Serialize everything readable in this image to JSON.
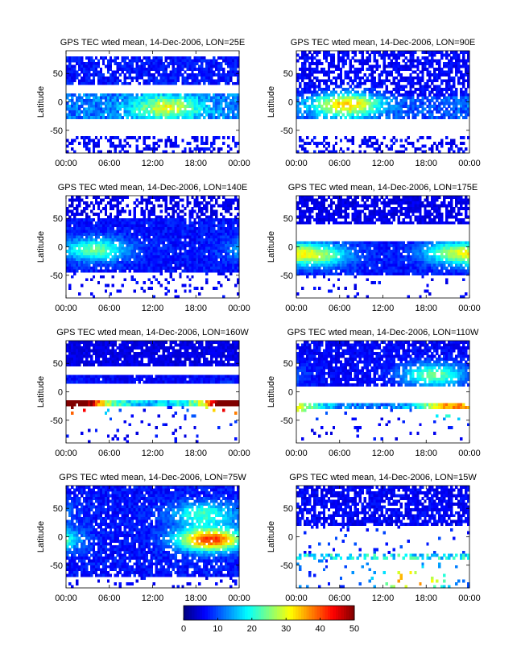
{
  "figure": {
    "colorbar": {
      "min": 0,
      "max": 50,
      "ticks": [
        0,
        10,
        20,
        30,
        40,
        50
      ],
      "colormap": "jet"
    }
  },
  "chart_data": [
    {
      "type": "heatmap",
      "title": "GPS TEC wted mean, 14-Dec-2006, LON=25E",
      "ylabel": "Latitude",
      "xticklabels": [
        "00:00",
        "06:00",
        "12:00",
        "18:00",
        "00:00"
      ],
      "yticklabels": [
        "50",
        "0",
        "-50"
      ],
      "xlim": [
        0,
        24
      ],
      "ylim": [
        -90,
        90
      ],
      "clim": [
        0,
        50
      ],
      "bands": [
        {
          "lat": [
            30,
            80
          ],
          "tec": 7,
          "coverage": 0.82
        },
        {
          "lat": [
            -30,
            15
          ],
          "tec": 12,
          "coverage": 0.9
        },
        {
          "lat": [
            -90,
            -60
          ],
          "tec": 6,
          "coverage": 0.35
        }
      ],
      "peaks": [
        {
          "hour": 14,
          "lat": -10,
          "tec": 30
        }
      ]
    },
    {
      "type": "heatmap",
      "title": "GPS TEC wted mean, 14-Dec-2006, LON=90E",
      "ylabel": "Latitude",
      "xticklabels": [
        "00:00",
        "06:00",
        "12:00",
        "18:00",
        "00:00"
      ],
      "yticklabels": [
        "50",
        "0",
        "-50"
      ],
      "xlim": [
        0,
        24
      ],
      "ylim": [
        -90,
        90
      ],
      "clim": [
        0,
        50
      ],
      "bands": [
        {
          "lat": [
            10,
            90
          ],
          "tec": 6,
          "coverage": 0.65
        },
        {
          "lat": [
            -30,
            10
          ],
          "tec": 10,
          "coverage": 0.75
        },
        {
          "lat": [
            -90,
            -60
          ],
          "tec": 6,
          "coverage": 0.35
        }
      ],
      "peaks": [
        {
          "hour": 7,
          "lat": -5,
          "tec": 34
        }
      ]
    },
    {
      "type": "heatmap",
      "title": "GPS TEC wted mean, 14-Dec-2006, LON=140E",
      "ylabel": "Latitude",
      "xticklabels": [
        "00:00",
        "06:00",
        "12:00",
        "18:00",
        "00:00"
      ],
      "yticklabels": [
        "50",
        "0",
        "-50"
      ],
      "xlim": [
        0,
        24
      ],
      "ylim": [
        -90,
        90
      ],
      "clim": [
        0,
        50
      ],
      "bands": [
        {
          "lat": [
            -45,
            50
          ],
          "tec": 7,
          "coverage": 0.95
        },
        {
          "lat": [
            50,
            90
          ],
          "tec": 5,
          "coverage": 0.5
        },
        {
          "lat": [
            -90,
            -45
          ],
          "tec": 6,
          "coverage": 0.15
        }
      ],
      "peaks": [
        {
          "hour": 4,
          "lat": -5,
          "tec": 24
        }
      ]
    },
    {
      "type": "heatmap",
      "title": "GPS TEC wted mean, 14-Dec-2006, LON=175E",
      "ylabel": "Latitude",
      "xticklabels": [
        "00:00",
        "06:00",
        "12:00",
        "18:00",
        "00:00"
      ],
      "yticklabels": [
        "50",
        "0",
        "-50"
      ],
      "xlim": [
        0,
        24
      ],
      "ylim": [
        -90,
        90
      ],
      "clim": [
        0,
        50
      ],
      "bands": [
        {
          "lat": [
            40,
            90
          ],
          "tec": 5,
          "coverage": 0.7
        },
        {
          "lat": [
            -50,
            10
          ],
          "tec": 7,
          "coverage": 0.95
        },
        {
          "lat": [
            -90,
            -50
          ],
          "tec": 6,
          "coverage": 0.1
        }
      ],
      "peaks": [
        {
          "hour": 3,
          "lat": -15,
          "tec": 24
        },
        {
          "hour": 22,
          "lat": -10,
          "tec": 24
        }
      ]
    },
    {
      "type": "heatmap",
      "title": "GPS TEC wted mean, 14-Dec-2006, LON=160W",
      "ylabel": "Latitude",
      "xticklabels": [
        "00:00",
        "06:00",
        "12:00",
        "18:00",
        "00:00"
      ],
      "yticklabels": [
        "50",
        "0",
        "-50"
      ],
      "xlim": [
        0,
        24
      ],
      "ylim": [
        -90,
        90
      ],
      "clim": [
        0,
        50
      ],
      "bands": [
        {
          "lat": [
            45,
            90
          ],
          "tec": 5,
          "coverage": 0.85
        },
        {
          "lat": [
            15,
            30
          ],
          "tec": 6,
          "coverage": 0.95
        },
        {
          "lat": [
            -25,
            -15
          ],
          "tec": 16,
          "coverage": 0.95
        },
        {
          "lat": [
            -90,
            -25
          ],
          "tec": 6,
          "coverage": 0.06
        }
      ],
      "peaks": [
        {
          "hour": 1,
          "lat": -20,
          "tec": 46
        },
        {
          "hour": 23,
          "lat": -20,
          "tec": 40
        }
      ]
    },
    {
      "type": "heatmap",
      "title": "GPS TEC wted mean, 14-Dec-2006, LON=110W",
      "ylabel": "Latitude",
      "xticklabels": [
        "00:00",
        "06:00",
        "12:00",
        "18:00",
        "00:00"
      ],
      "yticklabels": [
        "50",
        "0",
        "-50"
      ],
      "xlim": [
        0,
        24
      ],
      "ylim": [
        -90,
        90
      ],
      "clim": [
        0,
        50
      ],
      "bands": [
        {
          "lat": [
            10,
            90
          ],
          "tec": 6,
          "coverage": 0.85
        },
        {
          "lat": [
            -30,
            -20
          ],
          "tec": 12,
          "coverage": 0.9
        },
        {
          "lat": [
            -90,
            -30
          ],
          "tec": 6,
          "coverage": 0.05
        }
      ],
      "peaks": [
        {
          "hour": 19,
          "lat": 30,
          "tec": 24
        },
        {
          "hour": 22,
          "lat": -25,
          "tec": 38
        }
      ]
    },
    {
      "type": "heatmap",
      "title": "GPS TEC wted mean, 14-Dec-2006, LON=75W",
      "ylabel": "Latitude",
      "xticklabels": [
        "00:00",
        "06:00",
        "12:00",
        "18:00",
        "00:00"
      ],
      "yticklabels": [
        "50",
        "0",
        "-50"
      ],
      "xlim": [
        0,
        24
      ],
      "ylim": [
        -90,
        90
      ],
      "clim": [
        0,
        50
      ],
      "bands": [
        {
          "lat": [
            -70,
            90
          ],
          "tec": 7,
          "coverage": 0.88
        },
        {
          "lat": [
            -90,
            -70
          ],
          "tec": 6,
          "coverage": 0.1
        }
      ],
      "peaks": [
        {
          "hour": 20,
          "lat": -5,
          "tec": 42
        },
        {
          "hour": 19,
          "lat": 40,
          "tec": 22
        }
      ]
    },
    {
      "type": "heatmap",
      "title": "GPS TEC wted mean, 14-Dec-2006, LON=15W",
      "ylabel": "Latitude",
      "xticklabels": [
        "00:00",
        "06:00",
        "12:00",
        "18:00",
        "00:00"
      ],
      "yticklabels": [
        "50",
        "0",
        "-50"
      ],
      "xlim": [
        0,
        24
      ],
      "ylim": [
        -90,
        90
      ],
      "clim": [
        0,
        50
      ],
      "bands": [
        {
          "lat": [
            20,
            90
          ],
          "tec": 6,
          "coverage": 0.75
        },
        {
          "lat": [
            -40,
            -30
          ],
          "tec": 18,
          "coverage": 0.45
        },
        {
          "lat": [
            -90,
            -40
          ],
          "tec": 10,
          "coverage": 0.08
        },
        {
          "lat": [
            -30,
            20
          ],
          "tec": 8,
          "coverage": 0.03
        }
      ],
      "peaks": [
        {
          "hour": 16,
          "lat": -75,
          "tec": 40
        }
      ]
    }
  ]
}
